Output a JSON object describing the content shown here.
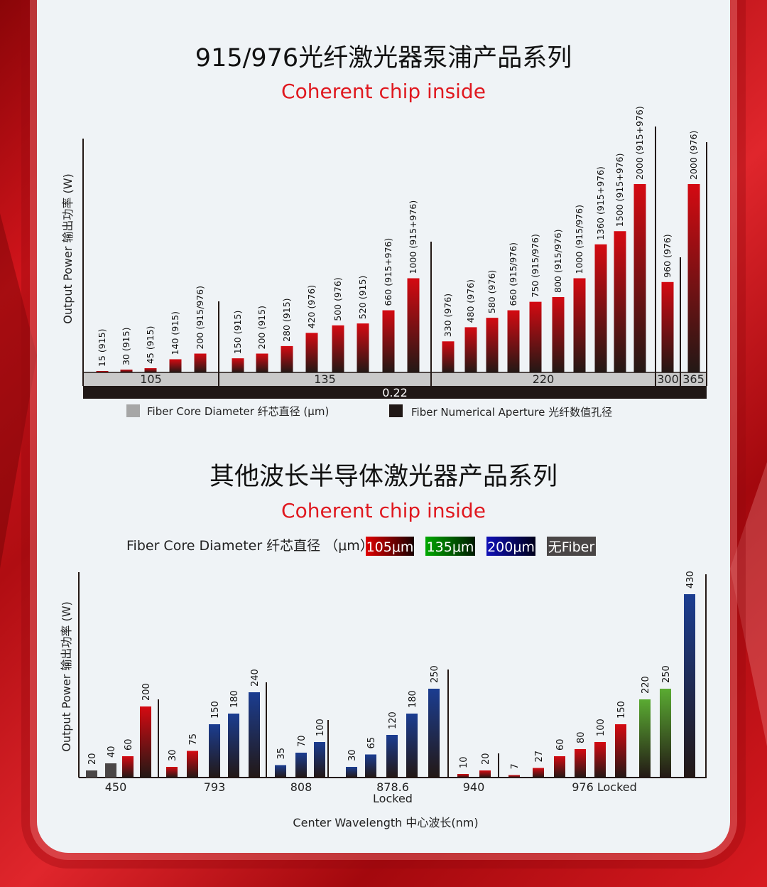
{
  "colors": {
    "accent_red": "#e0181f",
    "bar_red": "#d40a12",
    "bar_blue": "#1b3d91",
    "bar_green": "#5aab32",
    "bar_gray": "#4a4646",
    "bar_dark": "#231815",
    "core_row": "#c9c9c9",
    "na_row": "#201816"
  },
  "chart_data": [
    {
      "type": "bar",
      "title": "915/976光纤激光器泵浦产品系列",
      "subtitle": "Coherent  chip inside",
      "ylabel": "Output Power  输出功率 (W)",
      "groups": [
        {
          "core": "105",
          "bars": [
            {
              "value": 15,
              "label": "15 (915)"
            },
            {
              "value": 30,
              "label": "30 (915)"
            },
            {
              "value": 45,
              "label": "45 (915)"
            },
            {
              "value": 140,
              "label": "140 (915)"
            },
            {
              "value": 200,
              "label": "200 (915/976)"
            }
          ]
        },
        {
          "core": "135",
          "bars": [
            {
              "value": 150,
              "label": "150 (915)"
            },
            {
              "value": 200,
              "label": "200 (915)"
            },
            {
              "value": 280,
              "label": "280 (915)"
            },
            {
              "value": 420,
              "label": "420 (976)"
            },
            {
              "value": 500,
              "label": "500 (976)"
            },
            {
              "value": 520,
              "label": "520 (915)"
            },
            {
              "value": 660,
              "label": "660 (915+976)"
            },
            {
              "value": 1000,
              "label": "1000 (915+976)"
            }
          ]
        },
        {
          "core": "220",
          "bars": [
            {
              "value": 330,
              "label": "330 (976)"
            },
            {
              "value": 480,
              "label": "480 (976)"
            },
            {
              "value": 580,
              "label": "580 (976)"
            },
            {
              "value": 660,
              "label": "660 (915/976)"
            },
            {
              "value": 750,
              "label": "750 (915/976)"
            },
            {
              "value": 800,
              "label": "800 (915/976)"
            },
            {
              "value": 1000,
              "label": "1000 (915/976)"
            },
            {
              "value": 1360,
              "label": "1360 (915+976)"
            },
            {
              "value": 1500,
              "label": "1500 (915+976)"
            },
            {
              "value": 2000,
              "label": "2000 (915+976)"
            }
          ]
        },
        {
          "core": "300",
          "bars": [
            {
              "value": 960,
              "label": "960 (976)"
            }
          ]
        },
        {
          "core": "365",
          "bars": [
            {
              "value": 2000,
              "label": "2000 (976)"
            }
          ]
        }
      ],
      "na_label": "0.22",
      "legend": [
        {
          "label": "Fiber Core Diameter  纤芯直径 (μm)",
          "color": "#a6a6a6"
        },
        {
          "label": "Fiber Numerical Aperture  光纤数值孔径",
          "color": "#201816"
        }
      ]
    },
    {
      "type": "bar",
      "title": "其他波长半导体激光器产品系列",
      "subtitle": "Coherent  chip inside",
      "ylabel": "Output Power  输出功率 (W)",
      "xlabel": "Center Wavelength 中心波长(nm)",
      "legend_title": "Fiber Core Diameter 纤芯直径 （μm）",
      "legend": [
        {
          "key": "105",
          "label": "105μm",
          "color": "#e00000"
        },
        {
          "key": "135",
          "label": "135μm",
          "color": "#00a000"
        },
        {
          "key": "200",
          "label": "200μm",
          "color": "#1010b0"
        },
        {
          "key": "none",
          "label": "无Fiber",
          "color": "#4a4646"
        }
      ],
      "categories": [
        {
          "label": "450",
          "bars": [
            {
              "value": 20,
              "fiber": "none"
            },
            {
              "value": 40,
              "fiber": "none"
            },
            {
              "value": 60,
              "fiber": "105"
            },
            {
              "value": 200,
              "fiber": "105"
            }
          ]
        },
        {
          "label": "793",
          "bars": [
            {
              "value": 30,
              "fiber": "105"
            },
            {
              "value": 75,
              "fiber": "105"
            },
            {
              "value": 150,
              "fiber": "200"
            },
            {
              "value": 180,
              "fiber": "200"
            },
            {
              "value": 240,
              "fiber": "200"
            }
          ]
        },
        {
          "label": "808",
          "bars": [
            {
              "value": 35,
              "fiber": "200"
            },
            {
              "value": 70,
              "fiber": "200"
            },
            {
              "value": 100,
              "fiber": "200"
            }
          ]
        },
        {
          "label": "878.6",
          "label2": "Locked",
          "bars": [
            {
              "value": 30,
              "fiber": "200"
            },
            {
              "value": 65,
              "fiber": "200"
            },
            {
              "value": 120,
              "fiber": "200"
            },
            {
              "value": 180,
              "fiber": "200"
            },
            {
              "value": 250,
              "fiber": "200"
            }
          ]
        },
        {
          "label": "940",
          "bars": [
            {
              "value": 10,
              "fiber": "105"
            },
            {
              "value": 20,
              "fiber": "105"
            }
          ]
        },
        {
          "label": "976 Locked",
          "bars": [
            {
              "value": 7,
              "fiber": "105"
            },
            {
              "value": 27,
              "fiber": "105"
            },
            {
              "value": 60,
              "fiber": "105"
            },
            {
              "value": 80,
              "fiber": "105"
            },
            {
              "value": 100,
              "fiber": "105"
            },
            {
              "value": 150,
              "fiber": "105"
            },
            {
              "value": 220,
              "fiber": "135"
            },
            {
              "value": 250,
              "fiber": "135"
            },
            {
              "value": 430,
              "fiber": "200"
            }
          ]
        }
      ]
    }
  ]
}
